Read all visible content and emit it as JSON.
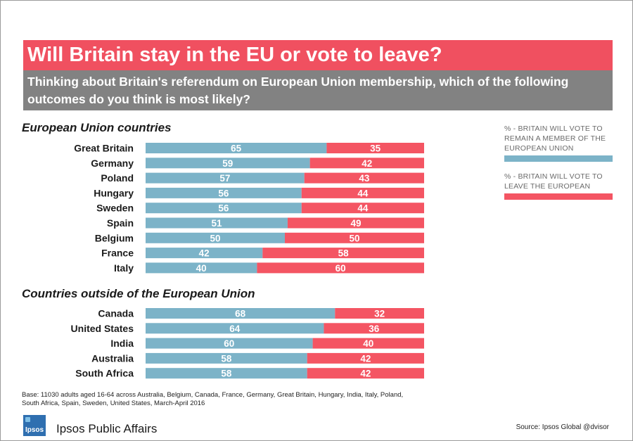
{
  "title": "Will Britain stay in the EU or vote to leave?",
  "subtitle": "Thinking about Britain's referendum on European Union membership, which of the following outcomes do you think is most likely?",
  "legend": {
    "remain_label": "% - BRITAIN WILL VOTE TO REMAIN A MEMBER OF THE EUROPEAN UNION",
    "leave_label": "% - BRITAIN WILL VOTE TO LEAVE THE EUROPEAN UNION"
  },
  "colors": {
    "remain": "#7cb3c8",
    "leave": "#f45563",
    "title_bg": "#f05060",
    "subtitle_bg": "#828282"
  },
  "footnote": "Base: 11030 adults aged 16-64 across Australia, Belgium, Canada, France, Germany, Great Britain, Hungary, India, Italy, Poland, South Africa, Spain, Sweden, United States, March-April 2016",
  "brand": "Ipsos Public Affairs",
  "logo_text": "Ipsos",
  "source": "Source: Ipsos Global @dvisor",
  "chart_data": {
    "type": "bar",
    "orientation": "horizontal",
    "stacked": true,
    "series_names": [
      "% - BRITAIN WILL VOTE TO REMAIN A MEMBER OF THE EUROPEAN UNION",
      "% - BRITAIN WILL VOTE TO LEAVE THE EUROPEAN UNION"
    ],
    "groups": [
      {
        "heading": "European Union countries",
        "rows": [
          {
            "category": "Great Britain",
            "remain": 65,
            "leave": 35
          },
          {
            "category": "Germany",
            "remain": 59,
            "leave": 42
          },
          {
            "category": "Poland",
            "remain": 57,
            "leave": 43
          },
          {
            "category": "Hungary",
            "remain": 56,
            "leave": 44
          },
          {
            "category": "Sweden",
            "remain": 56,
            "leave": 44
          },
          {
            "category": "Spain",
            "remain": 51,
            "leave": 49
          },
          {
            "category": "Belgium",
            "remain": 50,
            "leave": 50
          },
          {
            "category": "France",
            "remain": 42,
            "leave": 58
          },
          {
            "category": "Italy",
            "remain": 40,
            "leave": 60
          }
        ]
      },
      {
        "heading": "Countries outside of the European Union",
        "rows": [
          {
            "category": "Canada",
            "remain": 68,
            "leave": 32
          },
          {
            "category": "United States",
            "remain": 64,
            "leave": 36
          },
          {
            "category": "India",
            "remain": 60,
            "leave": 40
          },
          {
            "category": "Australia",
            "remain": 58,
            "leave": 42
          },
          {
            "category": "South Africa",
            "remain": 58,
            "leave": 42
          }
        ]
      }
    ]
  }
}
